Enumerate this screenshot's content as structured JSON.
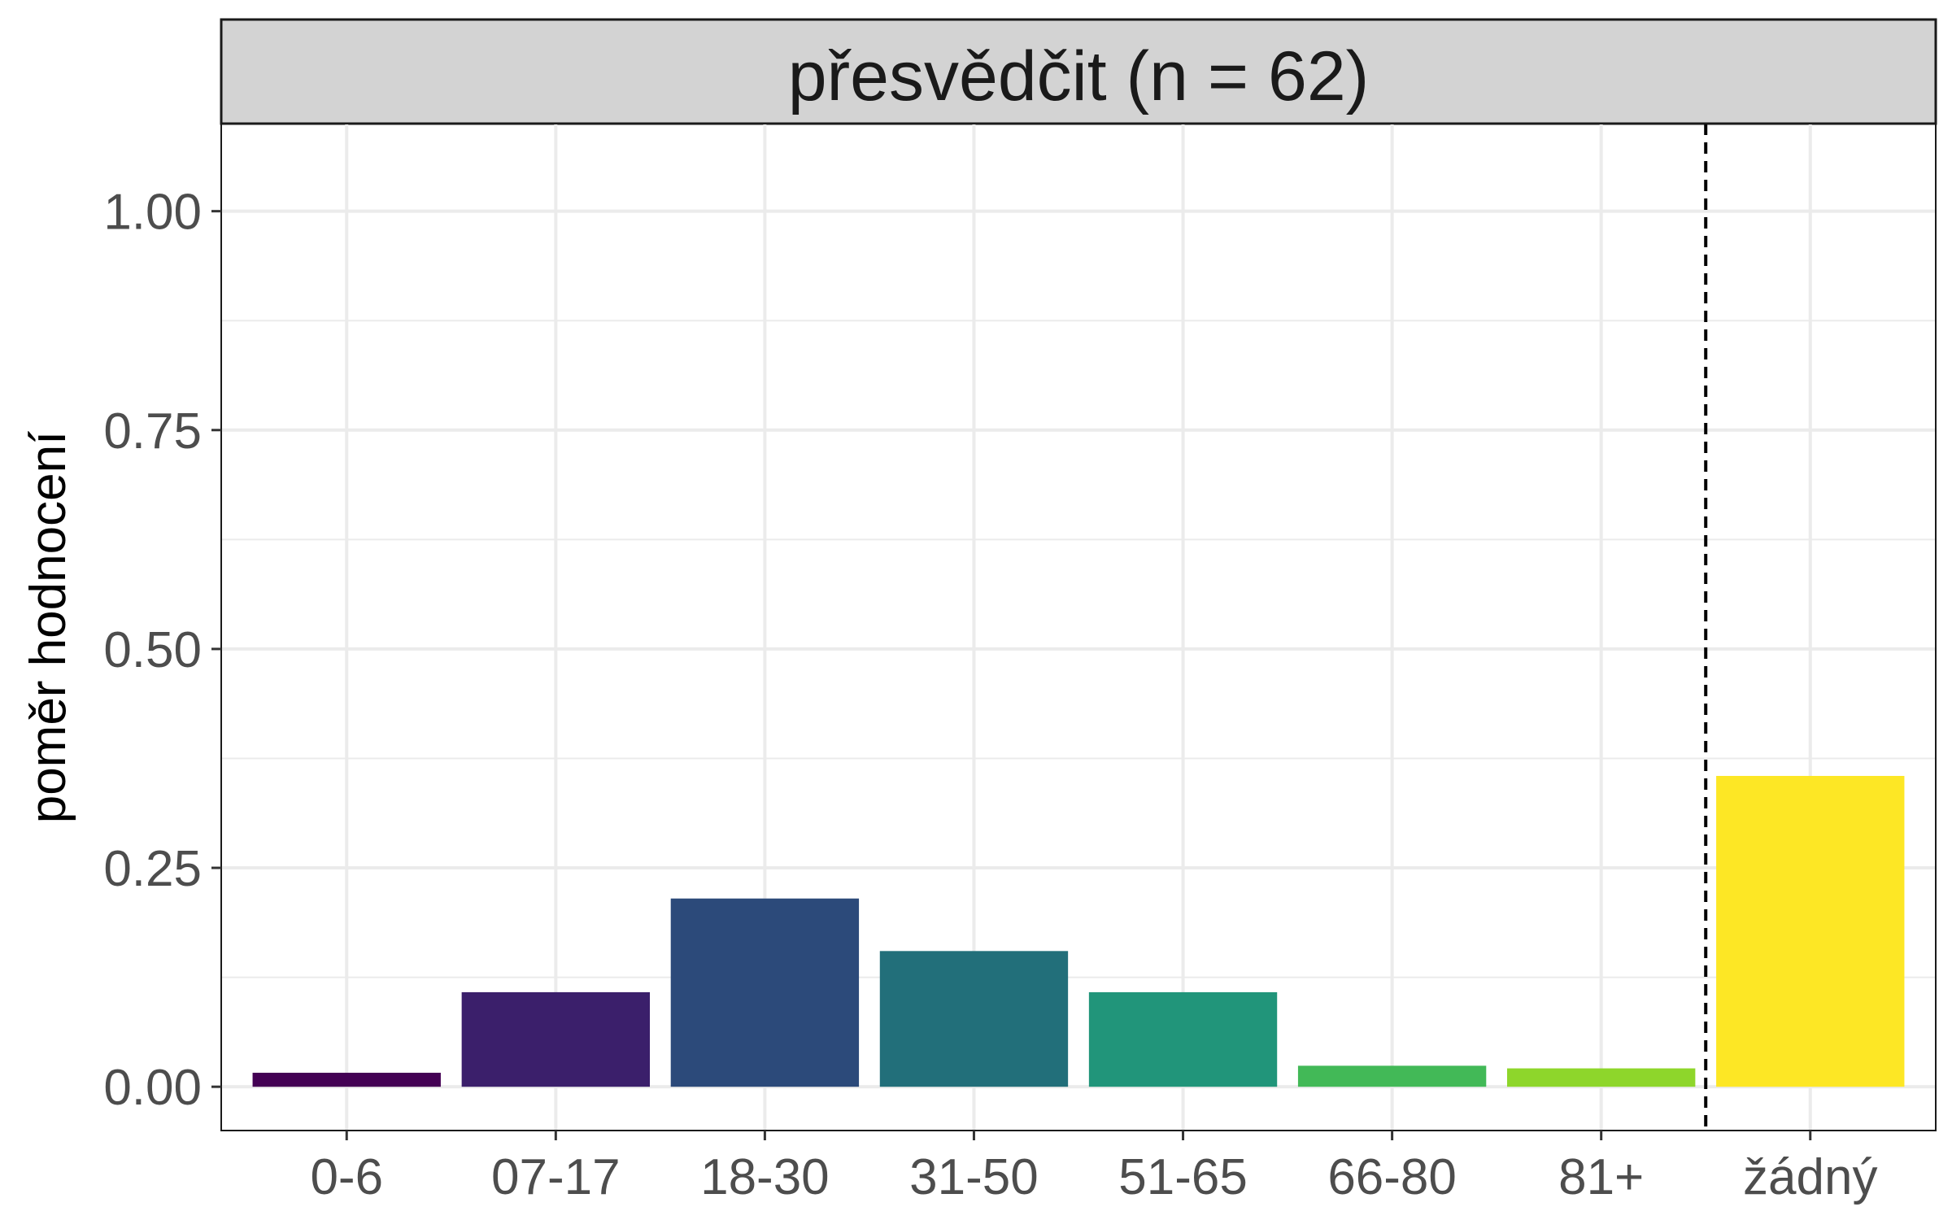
{
  "chart_data": {
    "type": "bar",
    "title": "přesvědčit (n = 62)",
    "ylabel": "poměr hodnocení",
    "xlabel": "",
    "categories": [
      "0-6",
      "07-17",
      "18-30",
      "31-50",
      "51-65",
      "66-80",
      "81+",
      "žádný"
    ],
    "values": [
      0.016,
      0.108,
      0.215,
      0.155,
      0.108,
      0.024,
      0.021,
      0.355
    ],
    "colors": [
      "#440154",
      "#3b1f6b",
      "#2c4a7a",
      "#226f7a",
      "#21957a",
      "#42b957",
      "#8ed62b",
      "#fde725"
    ],
    "ylim": [
      -0.05,
      1.1
    ],
    "yticks": [
      "0.00",
      "0.25",
      "0.50",
      "0.75",
      "1.00"
    ],
    "ytick_values": [
      0,
      0.25,
      0.5,
      0.75,
      1.0
    ],
    "separator_after_category": "81+",
    "grid": true,
    "legend": "none",
    "strip_color": "#d3d3d3",
    "grid_color": "#ebebeb",
    "separator_color": "#000000"
  }
}
